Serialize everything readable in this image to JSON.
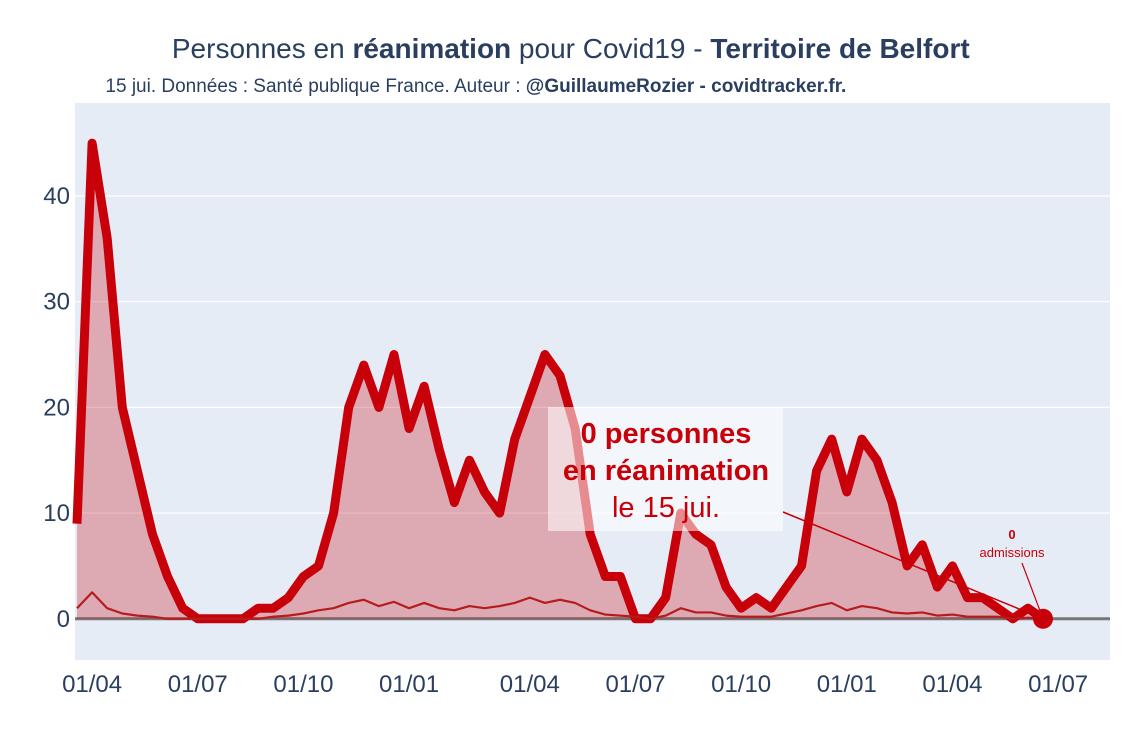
{
  "chart_data": {
    "type": "line",
    "title": [
      "Personnes en ",
      "réanimation",
      " pour Covid19 - ",
      "Territoire de Belfort"
    ],
    "subtitle": [
      "15 jui. Données : Santé publique France. Auteur : ",
      "@GuillaumeRozier - covidtracker.fr."
    ],
    "categories": [
      null,
      "01/04",
      null,
      null,
      null,
      null,
      null,
      null,
      "01/07",
      null,
      null,
      null,
      null,
      null,
      null,
      "01/10",
      null,
      null,
      null,
      null,
      null,
      null,
      "01/01",
      null,
      null,
      null,
      null,
      null,
      null,
      null,
      "01/04",
      null,
      null,
      null,
      null,
      null,
      null,
      "01/07",
      null,
      null,
      null,
      null,
      null,
      null,
      "01/10",
      null,
      null,
      null,
      null,
      null,
      null,
      "01/01",
      null,
      null,
      null,
      null,
      null,
      null,
      "01/04",
      null,
      null,
      null,
      null,
      null,
      null,
      "01/07"
    ],
    "series": [
      {
        "name": "réanimation",
        "color": "#c8000a",
        "values": [
          9,
          45,
          36,
          20,
          14,
          8,
          4,
          1,
          0,
          0,
          0,
          0,
          1,
          1,
          2,
          4,
          5,
          10,
          20,
          24,
          20,
          25,
          18,
          22,
          16,
          11,
          15,
          12,
          10,
          17,
          21,
          25,
          23,
          18,
          8,
          4,
          4,
          0,
          0,
          2,
          10,
          8,
          7,
          3,
          1,
          2,
          1,
          3,
          5,
          14,
          17,
          12,
          17,
          15,
          11,
          5,
          7,
          3,
          5,
          2,
          2,
          1,
          0,
          1,
          0,
          null
        ]
      },
      {
        "name": "admissions",
        "color": "#b51c1c",
        "values": [
          1,
          2.5,
          1,
          0.5,
          0.3,
          0.2,
          0,
          0,
          0,
          0,
          0,
          0,
          0,
          0.2,
          0.3,
          0.5,
          0.8,
          1,
          1.5,
          1.8,
          1.2,
          1.6,
          1,
          1.5,
          1,
          0.8,
          1.2,
          1,
          1.2,
          1.5,
          2,
          1.5,
          1.8,
          1.5,
          0.8,
          0.4,
          0.3,
          0.2,
          0,
          0.3,
          1,
          0.6,
          0.6,
          0.3,
          0.2,
          0.2,
          0.2,
          0.5,
          0.8,
          1.2,
          1.5,
          0.8,
          1.2,
          1,
          0.6,
          0.5,
          0.6,
          0.3,
          0.4,
          0.2,
          0.2,
          0.2,
          0,
          0.1,
          0,
          null
        ]
      }
    ],
    "ylim": [
      -3.9,
      48.8
    ],
    "yticks": [
      0,
      10,
      20,
      30,
      40
    ],
    "grid": true,
    "annotations": [
      {
        "lines": [
          "0 personnes",
          "en réanimation",
          "le 15 jui."
        ]
      },
      {
        "lines": [
          "0",
          "admissions"
        ]
      }
    ]
  }
}
